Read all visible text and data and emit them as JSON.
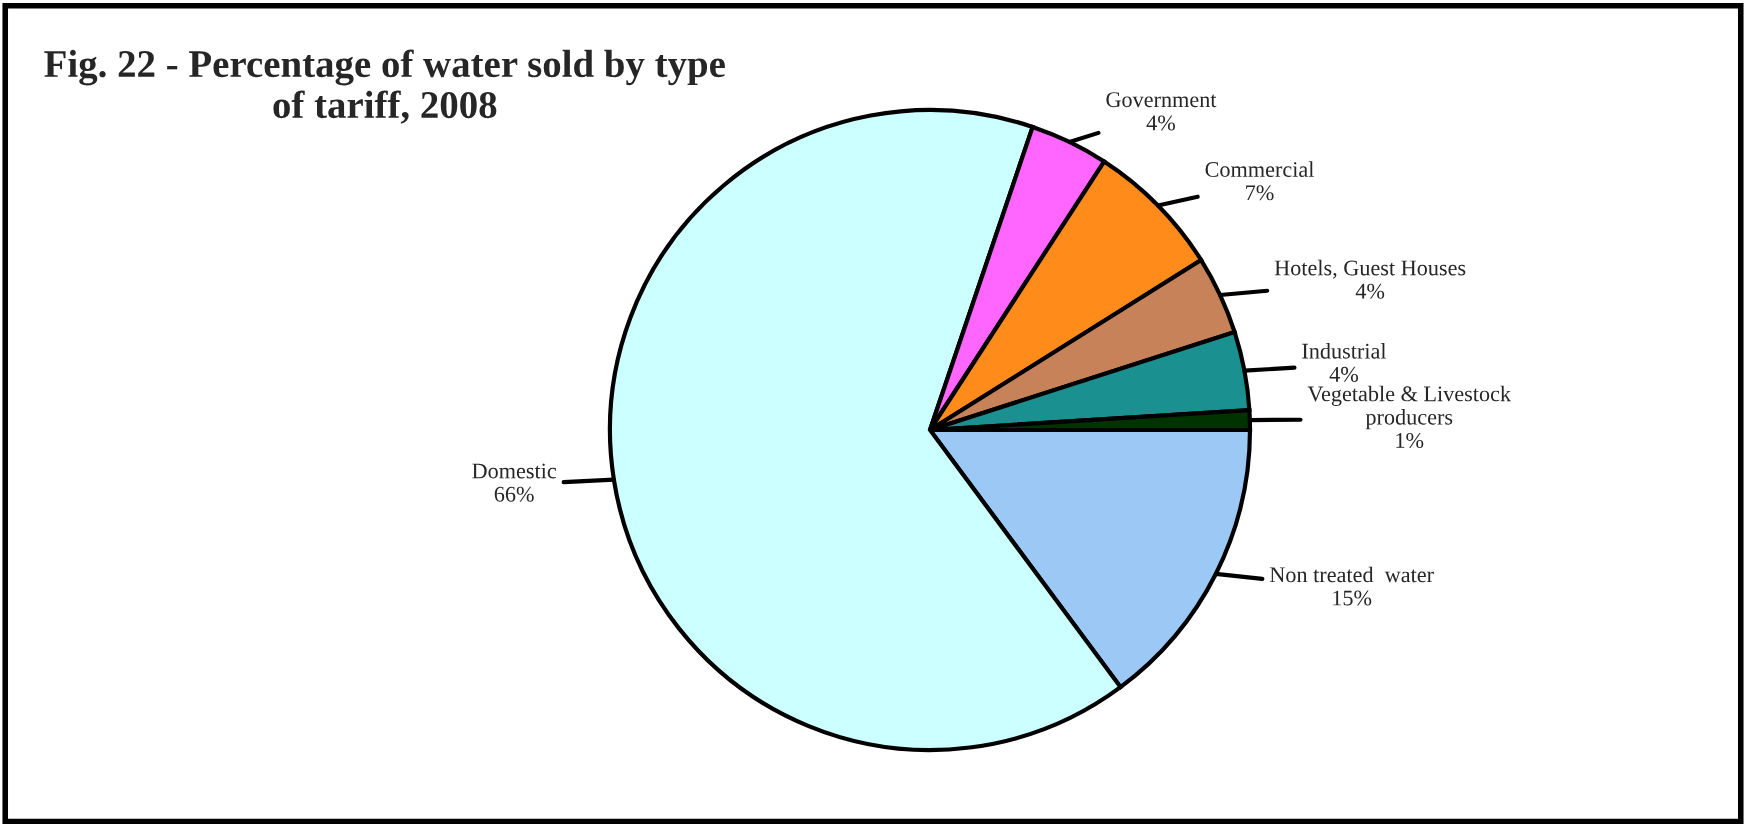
{
  "chart_data": {
    "type": "pie",
    "title": "Fig. 22 - Percentage of water sold by type\nof tariff, 2008",
    "categories": [
      "Non treated  water",
      "Domestic",
      "Government",
      "Commercial",
      "Hotels, Guest Houses",
      "Industrial",
      "Vegetable & Livestock\nproducers"
    ],
    "values": [
      15,
      66,
      4,
      7,
      4,
      4,
      1
    ],
    "value_labels": [
      "15%",
      "66%",
      "4%",
      "7%",
      "4%",
      "4%",
      "1%"
    ],
    "colors": [
      "#9cc8f5",
      "#ccffff",
      "#ff66ff",
      "#ff8c1a",
      "#c8825a",
      "#1a9090",
      "#003300"
    ]
  }
}
